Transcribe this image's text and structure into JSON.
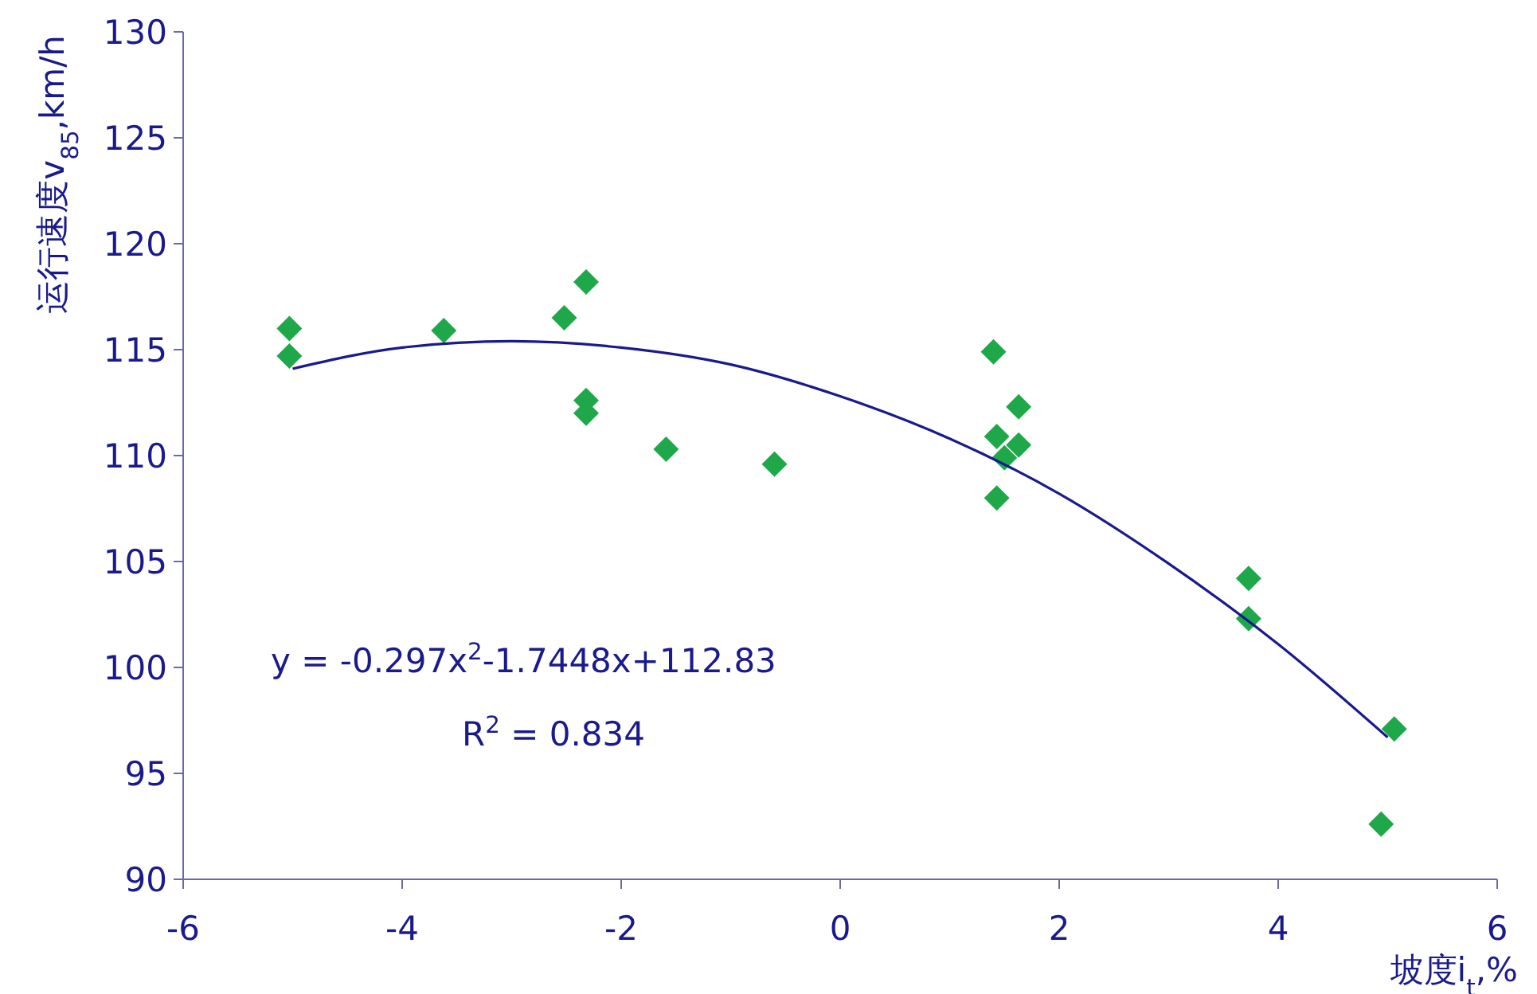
{
  "chart_data": {
    "type": "scatter",
    "xlabel": "坡度i$_{t}$,%",
    "ylabel": "运行速度v$_{85}$,km/h",
    "xlim": [
      -6,
      6
    ],
    "xticks": [
      -6,
      -4,
      -2,
      0,
      2,
      4,
      6
    ],
    "ylim": [
      90,
      130
    ],
    "yticks": [
      90,
      95,
      100,
      105,
      110,
      115,
      120,
      125,
      130
    ],
    "grid": false,
    "legend": false,
    "marker": "diamond",
    "series": [
      {
        "color": "#1fa84a",
        "x": [
          -5.03,
          -5.03,
          -3.62,
          -2.52,
          -2.32,
          -2.32,
          -2.32,
          -1.59,
          -0.6,
          1.4,
          1.43,
          1.43,
          1.5,
          1.63,
          1.63,
          3.73,
          3.73,
          4.94,
          5.06
        ],
        "values": [
          116.0,
          114.7,
          115.9,
          116.5,
          118.2,
          112.6,
          112.0,
          110.3,
          109.6,
          114.9,
          110.9,
          108.0,
          109.9,
          110.5,
          112.3,
          104.2,
          102.3,
          92.6,
          97.1
        ]
      },
      {
        "type": "line",
        "color": "#1a1a8c",
        "marker": "none",
        "x": [
          -5,
          -4,
          -3,
          -2,
          -1,
          0,
          1,
          2,
          3,
          4,
          5
        ],
        "values": [
          114.1,
          115.1,
          115.4,
          115.1,
          114.3,
          112.8,
          110.8,
          108.2,
          104.9,
          101.1,
          96.7
        ]
      }
    ],
    "annotations": [
      "y = -0.297x$^{2}$-1.7448x+112.83",
      "R$^{2}$ = 0.834"
    ]
  }
}
